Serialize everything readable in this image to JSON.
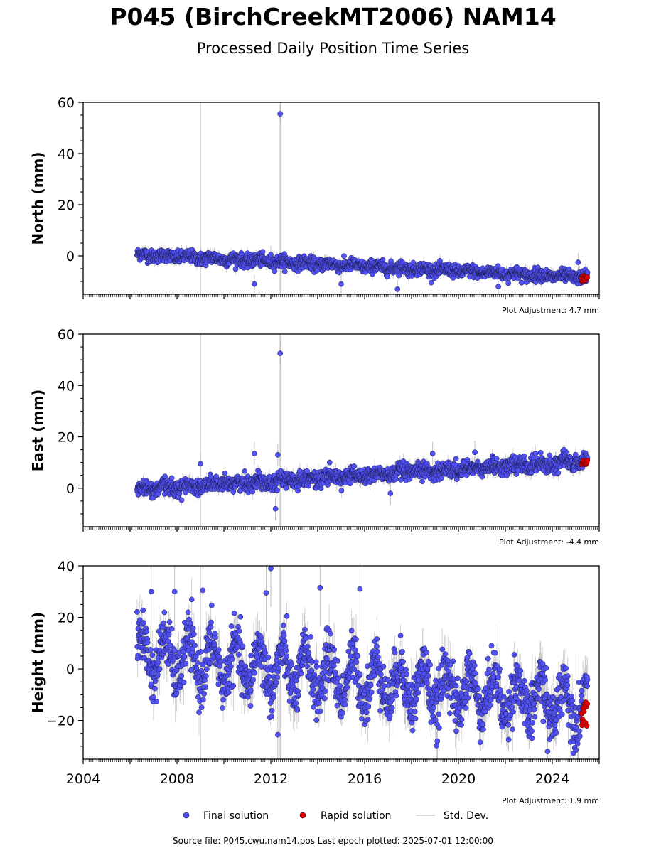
{
  "header": {
    "title": "P045 (BirchCreekMT2006) NAM14",
    "subtitle": "Processed Daily Position Time Series"
  },
  "footer": {
    "source": "Source file: P045.cwu.nam14.pos  Last epoch plotted: 2025-07-01 12:00:00"
  },
  "chart_data": [
    {
      "type": "scatter",
      "name": "north",
      "ylabel": "North (mm)",
      "xlim": [
        2004,
        2026
      ],
      "ylim": [
        -15,
        60
      ],
      "yticks": [
        0,
        20,
        40,
        60
      ],
      "adjustment": "Plot Adjustment: 4.7 mm",
      "trend": {
        "start_year": 2006.3,
        "end_year": 2025.5,
        "start": 0.5,
        "end": -8.5,
        "scatter": 1.2,
        "seasonal_amplitude": 0.5
      },
      "outliers": [
        [
          2012.4,
          55.5
        ],
        [
          2012.0,
          0.5
        ],
        [
          2011.3,
          -11
        ],
        [
          2015.0,
          -11
        ],
        [
          2017.4,
          -13
        ],
        [
          2021.7,
          -12
        ],
        [
          2025.1,
          -2.5
        ]
      ],
      "rapid": {
        "start_year": 2025.25,
        "end_year": 2025.5,
        "center": -9,
        "spread": 1.2
      }
    },
    {
      "type": "scatter",
      "name": "east",
      "ylabel": "East (mm)",
      "xlim": [
        2004,
        2026
      ],
      "ylim": [
        -15,
        60
      ],
      "yticks": [
        0,
        20,
        40,
        60
      ],
      "adjustment": "Plot Adjustment: -4.4 mm",
      "trend": {
        "start_year": 2006.3,
        "end_year": 2025.5,
        "start": -0.5,
        "end": 10.5,
        "scatter": 1.5,
        "seasonal_amplitude": 0.7
      },
      "outliers": [
        [
          2012.4,
          52.5
        ],
        [
          2012.2,
          -8
        ],
        [
          2012.3,
          13
        ],
        [
          2011.3,
          13.5
        ],
        [
          2009.0,
          9.5
        ],
        [
          2017.1,
          -2
        ],
        [
          2018.9,
          13.5
        ],
        [
          2020.7,
          14
        ],
        [
          2024.5,
          15
        ]
      ],
      "rapid": {
        "start_year": 2025.25,
        "end_year": 2025.5,
        "center": 10,
        "spread": 0.8
      }
    },
    {
      "type": "scatter",
      "name": "height",
      "ylabel": "Height (mm)",
      "xlim": [
        2004,
        2026
      ],
      "ylim": [
        -35,
        40
      ],
      "yticks": [
        -20,
        0,
        20,
        40
      ],
      "xticks": [
        2004,
        2008,
        2012,
        2016,
        2020,
        2024
      ],
      "adjustment": "Plot Adjustment: 1.9 mm",
      "trend": {
        "start_year": 2006.3,
        "end_year": 2025.5,
        "start": 6,
        "end": -14,
        "scatter": 5,
        "seasonal_amplitude": 8
      },
      "outliers": [
        [
          2012.0,
          39
        ],
        [
          2006.9,
          30
        ],
        [
          2007.9,
          30
        ],
        [
          2009.1,
          30.5
        ],
        [
          2014.1,
          31.5
        ],
        [
          2015.8,
          31
        ],
        [
          2011.8,
          29.5
        ],
        [
          2012.3,
          -25.5
        ],
        [
          2023.8,
          -32
        ],
        [
          2019.1,
          -28
        ]
      ],
      "rapid": {
        "start_year": 2025.25,
        "end_year": 2025.5,
        "center": -17,
        "spread": 4
      }
    }
  ],
  "legend": {
    "final": "Final solution",
    "rapid": "Rapid solution",
    "std": "Std. Dev."
  },
  "colors": {
    "final_fill": "#5050f5",
    "final_edge": "#1a1a40",
    "rapid_fill": "#e00000",
    "std": "#c8c8c8"
  },
  "vertical_markers": [
    2009.0,
    2012.4
  ]
}
